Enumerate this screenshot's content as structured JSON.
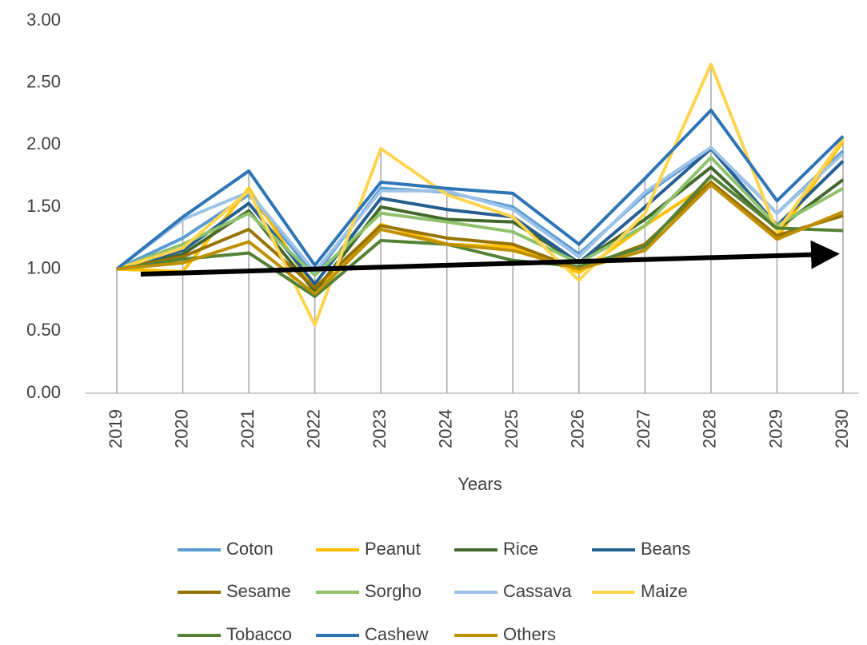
{
  "chart_data": {
    "type": "line",
    "x_label": "Years",
    "categories": [
      "2019",
      "2020",
      "2021",
      "2022",
      "2023",
      "2024",
      "2025",
      "2026",
      "2027",
      "2028",
      "2029",
      "2030"
    ],
    "ylim": [
      0,
      3
    ],
    "yticks": [
      {
        "value": 0,
        "label": "0.00"
      },
      {
        "value": 0.5,
        "label": "0.50"
      },
      {
        "value": 1,
        "label": "1.00"
      },
      {
        "value": 1.5,
        "label": "1.50"
      },
      {
        "value": 2,
        "label": "2.00"
      },
      {
        "value": 2.5,
        "label": "2.50"
      },
      {
        "value": 3,
        "label": "3.00"
      }
    ],
    "legend": "bottom",
    "series": [
      {
        "name": "Coton",
        "color": "#5b9bd5",
        "values": [
          1.0,
          1.25,
          1.6,
          0.95,
          1.65,
          1.62,
          1.5,
          1.12,
          1.6,
          1.97,
          1.45,
          1.95
        ]
      },
      {
        "name": "Peanut",
        "color": "#ffc000",
        "values": [
          1.0,
          0.98,
          1.65,
          0.82,
          1.36,
          1.2,
          1.18,
          0.97,
          1.35,
          1.7,
          1.25,
          2.03
        ]
      },
      {
        "name": "Rice",
        "color": "#43682b",
        "values": [
          1.0,
          1.12,
          1.47,
          0.82,
          1.5,
          1.4,
          1.38,
          1.05,
          1.4,
          1.82,
          1.32,
          1.72
        ]
      },
      {
        "name": "Beans",
        "color": "#255e91",
        "values": [
          1.0,
          1.15,
          1.53,
          0.88,
          1.57,
          1.48,
          1.42,
          1.05,
          1.5,
          1.97,
          1.35,
          1.87
        ]
      },
      {
        "name": "Sesame",
        "color": "#997300",
        "values": [
          1.0,
          1.1,
          1.32,
          0.85,
          1.35,
          1.25,
          1.2,
          1.0,
          1.2,
          1.7,
          1.27,
          1.43
        ]
      },
      {
        "name": "Sorgho",
        "color": "#8fc26a",
        "values": [
          1.0,
          1.2,
          1.45,
          0.95,
          1.45,
          1.38,
          1.3,
          1.05,
          1.35,
          1.9,
          1.35,
          1.65
        ]
      },
      {
        "name": "Cassava",
        "color": "#9dc3e6",
        "values": [
          1.0,
          1.4,
          1.62,
          0.98,
          1.63,
          1.63,
          1.48,
          1.1,
          1.62,
          1.98,
          1.45,
          1.93
        ]
      },
      {
        "name": "Maize",
        "color": "#ffd54f",
        "values": [
          1.0,
          1.17,
          1.63,
          0.55,
          1.97,
          1.6,
          1.42,
          0.91,
          1.45,
          2.65,
          1.3,
          2.05
        ]
      },
      {
        "name": "Tobacco",
        "color": "#548235",
        "values": [
          1.0,
          1.08,
          1.13,
          0.78,
          1.23,
          1.2,
          1.07,
          1.02,
          1.18,
          1.75,
          1.33,
          1.31
        ]
      },
      {
        "name": "Cashew",
        "color": "#2e75b6",
        "values": [
          1.0,
          1.42,
          1.79,
          1.03,
          1.7,
          1.65,
          1.61,
          1.2,
          1.73,
          2.28,
          1.55,
          2.07
        ]
      },
      {
        "name": "Others",
        "color": "#bf9000",
        "values": [
          1.0,
          1.05,
          1.22,
          0.8,
          1.32,
          1.2,
          1.15,
          1.0,
          1.15,
          1.68,
          1.24,
          1.46
        ]
      }
    ]
  }
}
